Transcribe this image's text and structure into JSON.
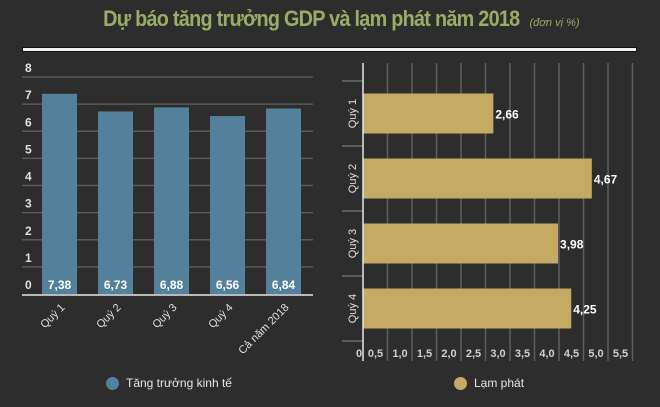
{
  "title": "Dự báo tăng trưởng GDP và lạm phát năm 2018",
  "unit": "(đơn vị %)",
  "chart_data": [
    {
      "type": "bar",
      "orientation": "vertical",
      "categories": [
        "Quý 1",
        "Quý 2",
        "Quý 3",
        "Quý 4",
        "Cả năm 2018"
      ],
      "series": [
        {
          "name": "Tăng trưởng kinh tế",
          "values": [
            7.38,
            6.73,
            6.88,
            6.56,
            6.84
          ],
          "color": "#53809b"
        }
      ],
      "data_labels": [
        "7,38",
        "6,73",
        "6,88",
        "6,56",
        "6,84"
      ],
      "yticks": [
        "0",
        "1",
        "2",
        "3",
        "4",
        "5",
        "6",
        "7",
        "8"
      ],
      "ylim": [
        0,
        8
      ],
      "grid": true,
      "legend": "bottom"
    },
    {
      "type": "bar",
      "orientation": "horizontal",
      "categories": [
        "Quý 1",
        "Quý 2",
        "Quý 3",
        "Quý 4"
      ],
      "series": [
        {
          "name": "Lạm phát",
          "values": [
            2.66,
            4.67,
            3.98,
            4.25
          ],
          "color": "#c4aa63"
        }
      ],
      "data_labels": [
        "2,66",
        "4,67",
        "3,98",
        "4,25"
      ],
      "xticks": [
        "0",
        "0,5",
        "1,0",
        "1,5",
        "2,0",
        "2,5",
        "3,0",
        "3,5",
        "4,0",
        "4,5",
        "5,0",
        "5,5"
      ],
      "xlim": [
        0,
        5.5
      ],
      "grid": true,
      "legend": "bottom"
    }
  ]
}
